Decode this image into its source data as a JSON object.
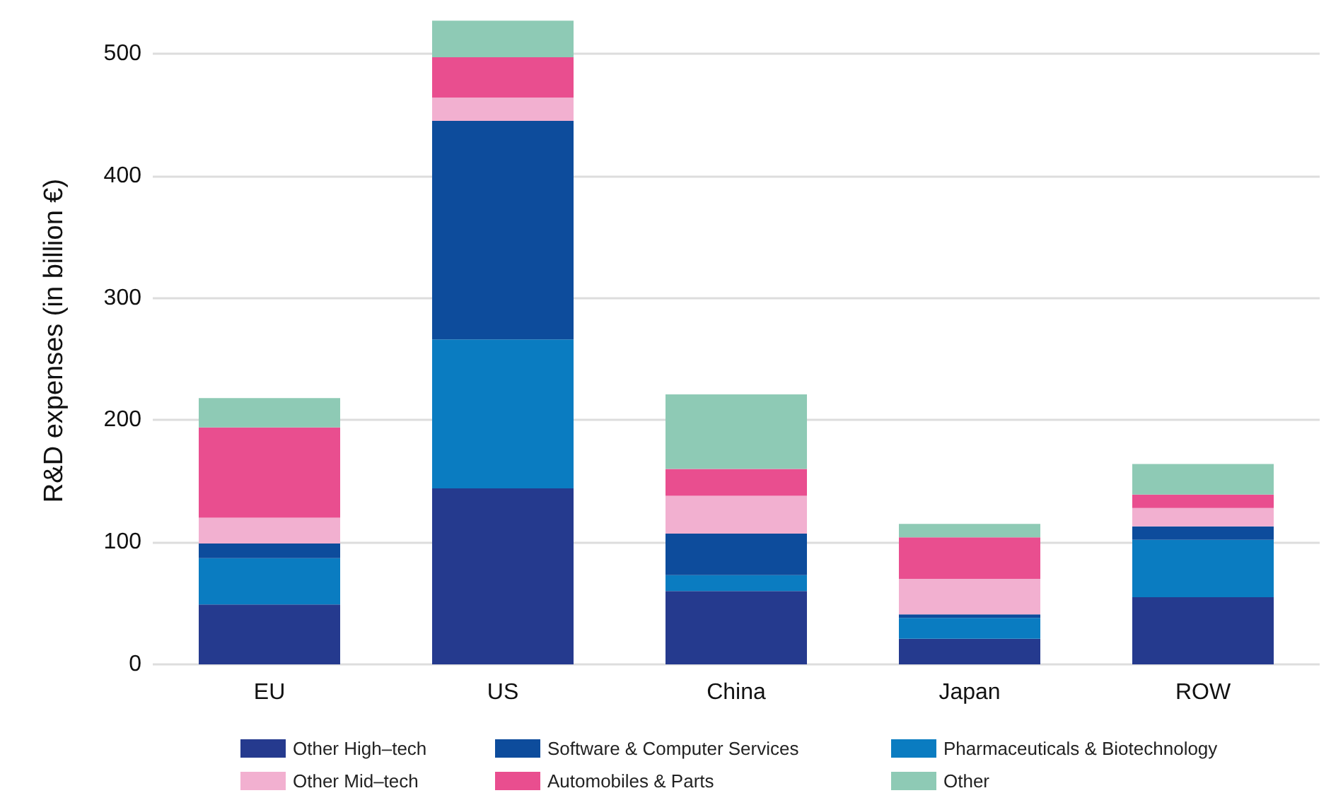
{
  "chart_data": {
    "type": "bar",
    "stacked": true,
    "ylabel": "R&D expenses (in billion €)",
    "categories": [
      "EU",
      "US",
      "China",
      "Japan",
      "ROW"
    ],
    "series": [
      {
        "name": "Other High–tech",
        "color": "#253a8e",
        "values": [
          49,
          144,
          60,
          21,
          55
        ]
      },
      {
        "name": "Pharmaceuticals & Biotechnology",
        "color": "#0a7cc1",
        "values": [
          38,
          122,
          13,
          17,
          47
        ]
      },
      {
        "name": "Software & Computer Services",
        "color": "#0d4c9c",
        "values": [
          12,
          179,
          34,
          3,
          11
        ]
      },
      {
        "name": "Other Mid–tech",
        "color": "#f2b0d0",
        "values": [
          21,
          19,
          31,
          29,
          15
        ]
      },
      {
        "name": "Automobiles & Parts",
        "color": "#e94e8f",
        "values": [
          74,
          33,
          22,
          34,
          11
        ]
      },
      {
        "name": "Other",
        "color": "#8ecab5",
        "values": [
          24,
          30,
          61,
          11,
          25
        ]
      }
    ],
    "ylim": [
      0,
      530
    ],
    "yticks": [
      0,
      100,
      200,
      300,
      400,
      500
    ],
    "grid": "y",
    "legend": "bottom"
  }
}
